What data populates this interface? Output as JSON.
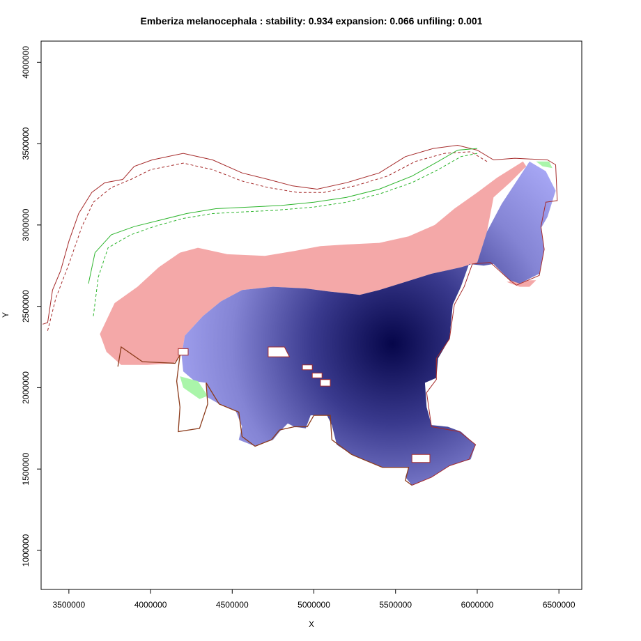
{
  "chart_data": {
    "type": "heatmap",
    "title": "Emberiza melanocephala : stability: 0.934 expansion: 0.066 unfiling: 0.001",
    "xlabel": "X",
    "ylabel": "Y",
    "xlim": [
      3330000,
      6640000
    ],
    "ylim": [
      760000,
      4130000
    ],
    "x_ticks": [
      3500000,
      4000000,
      4500000,
      5000000,
      5500000,
      6000000,
      6500000
    ],
    "y_ticks": [
      1000000,
      1500000,
      2000000,
      2500000,
      3000000,
      3500000,
      4000000
    ],
    "x_tick_labels": [
      "3500000",
      "4000000",
      "4500000",
      "5000000",
      "5500000",
      "6000000",
      "6500000"
    ],
    "y_tick_labels": [
      "1000000",
      "1500000",
      "2000000",
      "2500000",
      "3000000",
      "3500000",
      "4000000"
    ],
    "grid": false,
    "legend": "none",
    "density_peak": {
      "x": 5480000,
      "y": 2270000
    },
    "colors": {
      "stability_low": "#a6a6f4",
      "stability_high": "#06064a",
      "expansion": "#f4a8a8",
      "unfilling": "#aaf5aa",
      "native_env_line": "#2db52d",
      "invaded_env_line": "#a52a2a"
    },
    "regions": {
      "stability": [
        [
          4210000,
          2320000
        ],
        [
          4320000,
          2440000
        ],
        [
          4430000,
          2530000
        ],
        [
          4560000,
          2600000
        ],
        [
          4750000,
          2620000
        ],
        [
          4950000,
          2610000
        ],
        [
          5100000,
          2590000
        ],
        [
          5200000,
          2580000
        ],
        [
          5280000,
          2570000
        ],
        [
          5400000,
          2600000
        ],
        [
          5560000,
          2650000
        ],
        [
          5720000,
          2700000
        ],
        [
          5900000,
          2740000
        ],
        [
          6000000,
          2770000
        ],
        [
          6060000,
          2960000
        ],
        [
          6150000,
          3130000
        ],
        [
          6320000,
          3390000
        ],
        [
          6420000,
          3330000
        ],
        [
          6480000,
          3210000
        ],
        [
          6430000,
          3050000
        ],
        [
          6390000,
          2980000
        ],
        [
          6410000,
          2850000
        ],
        [
          6380000,
          2700000
        ],
        [
          6260000,
          2640000
        ],
        [
          6200000,
          2660000
        ],
        [
          6100000,
          2760000
        ],
        [
          6040000,
          2750000
        ],
        [
          5950000,
          2760000
        ],
        [
          5900000,
          2620000
        ],
        [
          5850000,
          2510000
        ],
        [
          5830000,
          2300000
        ],
        [
          5760000,
          2180000
        ],
        [
          5750000,
          2060000
        ],
        [
          5680000,
          2030000
        ],
        [
          5690000,
          1880000
        ],
        [
          5720000,
          1770000
        ],
        [
          5820000,
          1760000
        ],
        [
          5900000,
          1730000
        ],
        [
          5990000,
          1650000
        ],
        [
          5960000,
          1560000
        ],
        [
          5830000,
          1520000
        ],
        [
          5720000,
          1450000
        ],
        [
          5600000,
          1400000
        ],
        [
          5560000,
          1450000
        ],
        [
          5580000,
          1510000
        ],
        [
          5420000,
          1510000
        ],
        [
          5300000,
          1560000
        ],
        [
          5230000,
          1590000
        ],
        [
          5140000,
          1650000
        ],
        [
          5110000,
          1770000
        ],
        [
          5080000,
          1830000
        ],
        [
          4980000,
          1830000
        ],
        [
          4950000,
          1750000
        ],
        [
          4880000,
          1760000
        ],
        [
          4840000,
          1780000
        ],
        [
          4790000,
          1730000
        ],
        [
          4750000,
          1680000
        ],
        [
          4640000,
          1640000
        ],
        [
          4540000,
          1680000
        ],
        [
          4560000,
          1760000
        ],
        [
          4520000,
          1860000
        ],
        [
          4420000,
          1900000
        ],
        [
          4350000,
          1940000
        ],
        [
          4340000,
          2030000
        ],
        [
          4270000,
          2040000
        ],
        [
          4200000,
          2100000
        ],
        [
          4190000,
          2200000
        ]
      ],
      "expansion": [
        [
          3690000,
          2330000
        ],
        [
          3780000,
          2520000
        ],
        [
          3920000,
          2620000
        ],
        [
          4050000,
          2740000
        ],
        [
          4180000,
          2830000
        ],
        [
          4290000,
          2860000
        ],
        [
          4470000,
          2820000
        ],
        [
          4700000,
          2810000
        ],
        [
          4880000,
          2840000
        ],
        [
          5040000,
          2870000
        ],
        [
          5200000,
          2880000
        ],
        [
          5400000,
          2890000
        ],
        [
          5580000,
          2930000
        ],
        [
          5740000,
          3000000
        ],
        [
          5860000,
          3100000
        ],
        [
          6000000,
          3200000
        ],
        [
          6120000,
          3290000
        ],
        [
          6280000,
          3390000
        ],
        [
          6300000,
          3360000
        ],
        [
          6200000,
          3260000
        ],
        [
          6100000,
          3170000
        ],
        [
          6060000,
          2960000
        ],
        [
          6000000,
          2770000
        ],
        [
          5900000,
          2740000
        ],
        [
          5720000,
          2700000
        ],
        [
          5560000,
          2650000
        ],
        [
          5400000,
          2600000
        ],
        [
          5280000,
          2570000
        ],
        [
          5200000,
          2580000
        ],
        [
          5100000,
          2590000
        ],
        [
          4950000,
          2610000
        ],
        [
          4750000,
          2620000
        ],
        [
          4560000,
          2600000
        ],
        [
          4430000,
          2530000
        ],
        [
          4320000,
          2440000
        ],
        [
          4210000,
          2320000
        ],
        [
          4190000,
          2200000
        ],
        [
          4140000,
          2150000
        ],
        [
          3980000,
          2140000
        ],
        [
          3820000,
          2140000
        ],
        [
          3730000,
          2220000
        ]
      ],
      "expansion_east": [
        [
          6180000,
          2650000
        ],
        [
          6260000,
          2620000
        ],
        [
          6320000,
          2620000
        ],
        [
          6360000,
          2660000
        ],
        [
          6260000,
          2660000
        ]
      ],
      "unfilling": [
        [
          4180000,
          2070000
        ],
        [
          4290000,
          2040000
        ],
        [
          4350000,
          1950000
        ],
        [
          4300000,
          1930000
        ],
        [
          4200000,
          2000000
        ]
      ],
      "unfilling_ne": [
        [
          6360000,
          3390000
        ],
        [
          6440000,
          3390000
        ],
        [
          6460000,
          3350000
        ],
        [
          6400000,
          3360000
        ]
      ]
    },
    "holes": [
      [
        [
          4720000,
          2250000
        ],
        [
          4820000,
          2250000
        ],
        [
          4850000,
          2190000
        ],
        [
          4720000,
          2190000
        ]
      ],
      [
        [
          4170000,
          2240000
        ],
        [
          4230000,
          2240000
        ],
        [
          4230000,
          2200000
        ],
        [
          4170000,
          2200000
        ]
      ],
      [
        [
          4930000,
          2140000
        ],
        [
          4990000,
          2140000
        ],
        [
          4990000,
          2110000
        ],
        [
          4930000,
          2110000
        ]
      ],
      [
        [
          4990000,
          2090000
        ],
        [
          5050000,
          2090000
        ],
        [
          5050000,
          2060000
        ],
        [
          4990000,
          2060000
        ]
      ],
      [
        [
          5040000,
          2050000
        ],
        [
          5100000,
          2050000
        ],
        [
          5100000,
          2010000
        ],
        [
          5040000,
          2010000
        ]
      ],
      [
        [
          5600000,
          1590000
        ],
        [
          5710000,
          1590000
        ],
        [
          5710000,
          1540000
        ],
        [
          5600000,
          1540000
        ]
      ]
    ],
    "lines": {
      "invaded_outer": [
        [
          3340000,
          2390000
        ],
        [
          3370000,
          2400000
        ],
        [
          3400000,
          2600000
        ],
        [
          3450000,
          2720000
        ],
        [
          3500000,
          2900000
        ],
        [
          3560000,
          3070000
        ],
        [
          3640000,
          3200000
        ],
        [
          3720000,
          3260000
        ],
        [
          3830000,
          3280000
        ],
        [
          3900000,
          3360000
        ],
        [
          4010000,
          3400000
        ],
        [
          4200000,
          3440000
        ],
        [
          4380000,
          3400000
        ],
        [
          4560000,
          3320000
        ],
        [
          4720000,
          3280000
        ],
        [
          4870000,
          3240000
        ],
        [
          5020000,
          3220000
        ],
        [
          5200000,
          3260000
        ],
        [
          5400000,
          3320000
        ],
        [
          5560000,
          3420000
        ],
        [
          5730000,
          3470000
        ],
        [
          5880000,
          3490000
        ],
        [
          6000000,
          3460000
        ],
        [
          6100000,
          3400000
        ],
        [
          6230000,
          3410000
        ],
        [
          6430000,
          3400000
        ],
        [
          6480000,
          3370000
        ],
        [
          6490000,
          3150000
        ],
        [
          6420000,
          3140000
        ],
        [
          6390000,
          2990000
        ],
        [
          6410000,
          2850000
        ],
        [
          6380000,
          2690000
        ],
        [
          6240000,
          2630000
        ],
        [
          6200000,
          2660000
        ],
        [
          6080000,
          2770000
        ],
        [
          5970000,
          2760000
        ],
        [
          5920000,
          2620000
        ],
        [
          5860000,
          2510000
        ],
        [
          5830000,
          2300000
        ],
        [
          5750000,
          2180000
        ],
        [
          5750000,
          2050000
        ],
        [
          5690000,
          1970000
        ],
        [
          5720000,
          1760000
        ],
        [
          5890000,
          1730000
        ],
        [
          5990000,
          1650000
        ],
        [
          5950000,
          1560000
        ],
        [
          5830000,
          1520000
        ],
        [
          5720000,
          1450000
        ],
        [
          5600000,
          1400000
        ]
      ],
      "invaded_dashed": [
        [
          3370000,
          2350000
        ],
        [
          3420000,
          2550000
        ],
        [
          3500000,
          2760000
        ],
        [
          3580000,
          2990000
        ],
        [
          3650000,
          3140000
        ],
        [
          3760000,
          3230000
        ],
        [
          3880000,
          3280000
        ],
        [
          4000000,
          3340000
        ],
        [
          4200000,
          3380000
        ],
        [
          4380000,
          3340000
        ],
        [
          4560000,
          3270000
        ],
        [
          4720000,
          3230000
        ],
        [
          4900000,
          3200000
        ],
        [
          5060000,
          3200000
        ],
        [
          5250000,
          3240000
        ],
        [
          5450000,
          3300000
        ],
        [
          5620000,
          3390000
        ],
        [
          5800000,
          3440000
        ],
        [
          5960000,
          3450000
        ],
        [
          6060000,
          3390000
        ]
      ],
      "native_solid": [
        [
          3620000,
          2640000
        ],
        [
          3660000,
          2830000
        ],
        [
          3760000,
          2940000
        ],
        [
          3900000,
          2990000
        ],
        [
          4060000,
          3030000
        ],
        [
          4220000,
          3070000
        ],
        [
          4400000,
          3100000
        ],
        [
          4600000,
          3110000
        ],
        [
          4800000,
          3120000
        ],
        [
          5000000,
          3140000
        ],
        [
          5200000,
          3170000
        ],
        [
          5400000,
          3220000
        ],
        [
          5600000,
          3300000
        ],
        [
          5760000,
          3390000
        ],
        [
          5880000,
          3460000
        ],
        [
          6000000,
          3470000
        ]
      ],
      "native_dashed": [
        [
          3650000,
          2440000
        ],
        [
          3680000,
          2680000
        ],
        [
          3740000,
          2860000
        ],
        [
          3880000,
          2940000
        ],
        [
          4020000,
          2990000
        ],
        [
          4200000,
          3040000
        ],
        [
          4380000,
          3070000
        ],
        [
          4560000,
          3080000
        ],
        [
          4760000,
          3090000
        ],
        [
          5000000,
          3110000
        ],
        [
          5200000,
          3140000
        ],
        [
          5400000,
          3190000
        ],
        [
          5600000,
          3260000
        ],
        [
          5760000,
          3340000
        ],
        [
          5900000,
          3420000
        ],
        [
          6000000,
          3440000
        ]
      ],
      "inner_border": [
        [
          3800000,
          2130000
        ],
        [
          3820000,
          2250000
        ],
        [
          3950000,
          2160000
        ],
        [
          4150000,
          2150000
        ],
        [
          4180000,
          2200000
        ],
        [
          4160000,
          2040000
        ],
        [
          4180000,
          1880000
        ],
        [
          4170000,
          1730000
        ],
        [
          4300000,
          1750000
        ],
        [
          4350000,
          1900000
        ],
        [
          4340000,
          2030000
        ],
        [
          4420000,
          1900000
        ],
        [
          4540000,
          1850000
        ],
        [
          4560000,
          1700000
        ],
        [
          4640000,
          1640000
        ],
        [
          4740000,
          1680000
        ],
        [
          4790000,
          1740000
        ],
        [
          4880000,
          1760000
        ],
        [
          4960000,
          1760000
        ],
        [
          5000000,
          1830000
        ],
        [
          5100000,
          1830000
        ],
        [
          5110000,
          1680000
        ],
        [
          5230000,
          1590000
        ],
        [
          5300000,
          1560000
        ],
        [
          5420000,
          1510000
        ],
        [
          5580000,
          1510000
        ],
        [
          5560000,
          1430000
        ],
        [
          5600000,
          1400000
        ]
      ]
    }
  }
}
